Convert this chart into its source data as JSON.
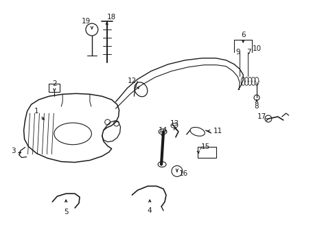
{
  "bg_color": "#ffffff",
  "line_color": "#1a1a1a",
  "lw": 0.8,
  "fs": 7.5,
  "figsize": [
    4.89,
    3.6
  ],
  "dpi": 100,
  "xlim": [
    0,
    489
  ],
  "ylim": [
    0,
    360
  ]
}
